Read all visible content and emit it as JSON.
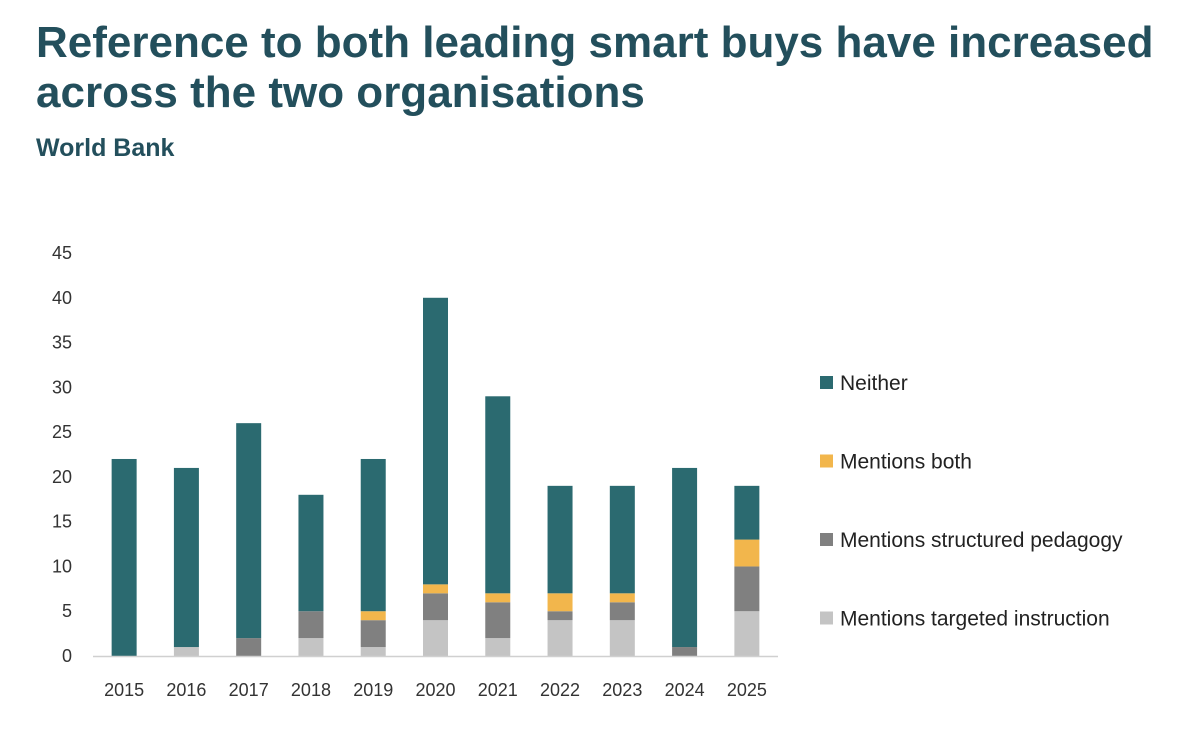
{
  "chart_data": {
    "type": "bar",
    "stacked": true,
    "title": "Reference to both leading smart buys have increased across the two organisations",
    "subtitle": "World Bank",
    "xlabel": "",
    "ylabel": "",
    "ylim": [
      0,
      45
    ],
    "yticks": [
      0,
      5,
      10,
      15,
      20,
      25,
      30,
      35,
      40,
      45
    ],
    "grid": false,
    "legend_position": "right",
    "categories": [
      "2015",
      "2016",
      "2017",
      "2018",
      "2019",
      "2020",
      "2021",
      "2022",
      "2023",
      "2024",
      "2025"
    ],
    "series": [
      {
        "name": "Mentions targeted instruction",
        "color": "#c4c4c4",
        "values": [
          0,
          1,
          0,
          2,
          1,
          4,
          2,
          4,
          4,
          0,
          5
        ]
      },
      {
        "name": "Mentions structured pedagogy",
        "color": "#808080",
        "values": [
          0,
          0,
          2,
          3,
          3,
          3,
          4,
          1,
          2,
          1,
          5
        ]
      },
      {
        "name": "Mentions both",
        "color": "#f2b64c",
        "values": [
          0,
          0,
          0,
          0,
          1,
          1,
          1,
          2,
          1,
          0,
          3
        ]
      },
      {
        "name": "Neither",
        "color": "#2b6a70",
        "values": [
          22,
          20,
          24,
          13,
          17,
          32,
          22,
          12,
          12,
          20,
          6
        ]
      }
    ],
    "legend_order": [
      "Neither",
      "Mentions both",
      "Mentions structured pedagogy",
      "Mentions targeted instruction"
    ]
  }
}
